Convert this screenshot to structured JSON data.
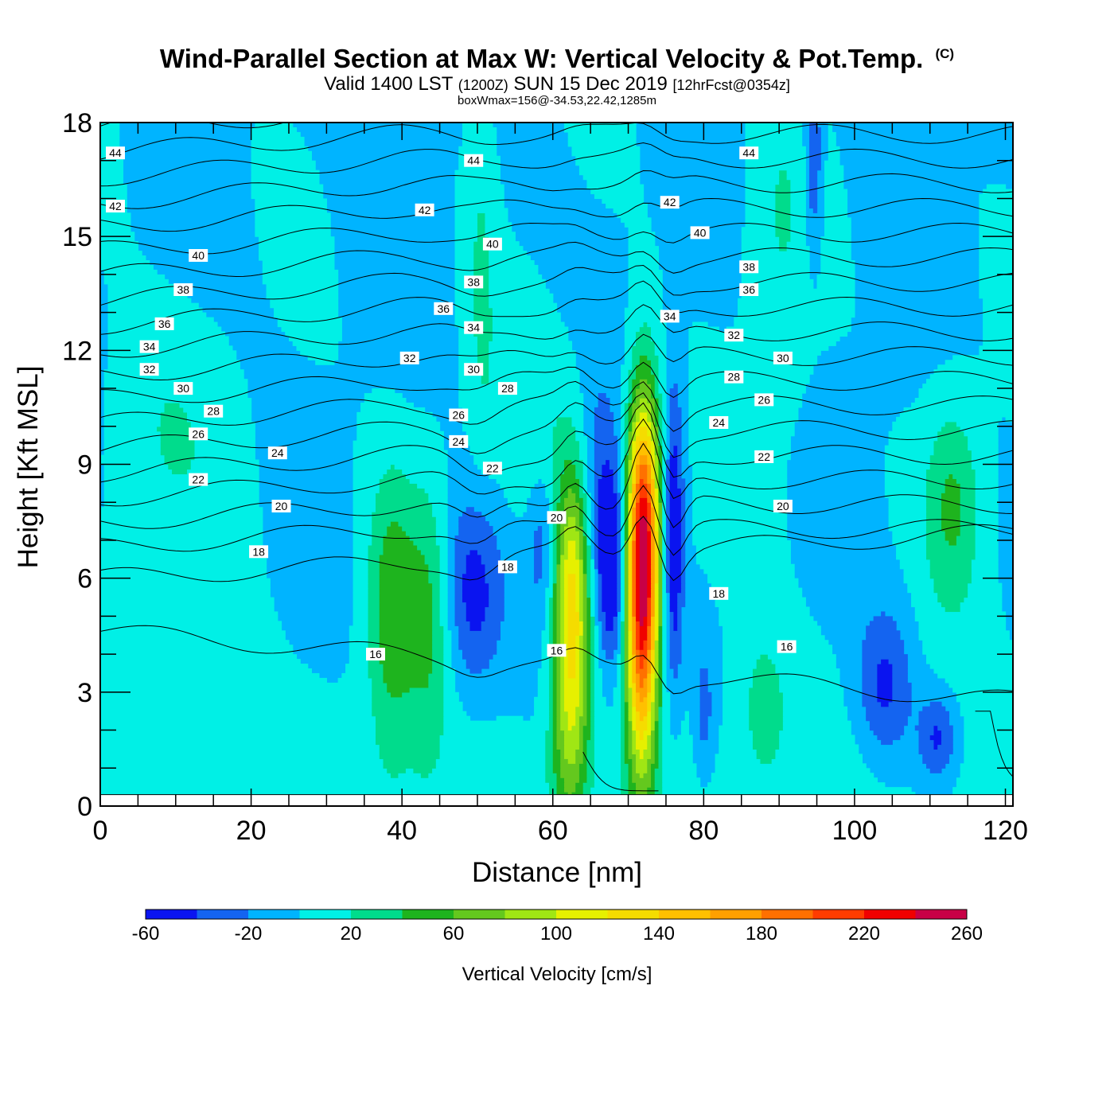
{
  "chart_data": {
    "type": "heatmap",
    "title": "Wind-Parallel Section at Max W: Vertical Velocity & Pot.Temp.",
    "title_mark": "(C)",
    "subtitle": {
      "valid": "Valid 1400 LST",
      "utc": "(1200Z)",
      "date": "SUN 15 Dec 2019",
      "forecast": "[12hrFcst@0354z]"
    },
    "annotation": "boxWmax=156@-34.53,22.42,1285m",
    "xlabel": "Distance [nm]",
    "ylabel": "Height [Kft MSL]",
    "xlim": [
      0,
      121
    ],
    "ylim": [
      0,
      18
    ],
    "x_ticks": [
      0,
      20,
      40,
      60,
      80,
      100,
      120
    ],
    "y_ticks": [
      0,
      3,
      6,
      9,
      12,
      15,
      18
    ],
    "terrain_height_kft": 0.3,
    "colorbar": {
      "label": "Vertical Velocity [cm/s]",
      "levels": [
        -60,
        -40,
        -20,
        0,
        20,
        40,
        60,
        80,
        100,
        120,
        140,
        160,
        180,
        200,
        220,
        240,
        260
      ],
      "tick_labels": [
        "-60",
        "-20",
        "20",
        "60",
        "100",
        "140",
        "180",
        "220",
        "260"
      ],
      "colors": [
        "#0a14f0",
        "#1464f0",
        "#00b4ff",
        "#00f0e6",
        "#00dc8c",
        "#1eb41e",
        "#64c81e",
        "#a0e614",
        "#e6f000",
        "#f5dc00",
        "#ffc000",
        "#ffa000",
        "#ff7000",
        "#ff3c00",
        "#f00000",
        "#c80046"
      ]
    },
    "vertical_velocity_features": [
      {
        "x": 62.5,
        "y": 5.5,
        "peak_cm_s": 130
      },
      {
        "x": 72.0,
        "y": 7.5,
        "peak_cm_s": 230
      },
      {
        "x": 68.0,
        "y": 6.3,
        "peak_cm_s": -60
      },
      {
        "x": 49.0,
        "y": 5.5,
        "peak_cm_s": -50
      },
      {
        "x": 76.0,
        "y": 7.0,
        "peak_cm_s": -60
      },
      {
        "x": 104.0,
        "y": 3.0,
        "peak_cm_s": -40
      },
      {
        "x": 38.5,
        "y": 5.0,
        "peak_cm_s": 55
      },
      {
        "x": 113.0,
        "y": 8.0,
        "peak_cm_s": 40
      },
      {
        "x": 88.0,
        "y": 2.8,
        "peak_cm_s": 30
      }
    ],
    "potential_temperature_labels": [
      {
        "x": 2,
        "y": 17.2,
        "text": "44"
      },
      {
        "x": 49.5,
        "y": 17.0,
        "text": "44"
      },
      {
        "x": 86,
        "y": 17.2,
        "text": "44"
      },
      {
        "x": 2,
        "y": 15.8,
        "text": "42"
      },
      {
        "x": 43,
        "y": 15.7,
        "text": "42"
      },
      {
        "x": 75.5,
        "y": 15.9,
        "text": "42"
      },
      {
        "x": 13,
        "y": 14.5,
        "text": "40"
      },
      {
        "x": 52,
        "y": 14.8,
        "text": "40"
      },
      {
        "x": 79.5,
        "y": 15.1,
        "text": "40"
      },
      {
        "x": 11,
        "y": 13.6,
        "text": "38"
      },
      {
        "x": 49.5,
        "y": 13.8,
        "text": "38"
      },
      {
        "x": 86,
        "y": 14.2,
        "text": "38"
      },
      {
        "x": 8.5,
        "y": 12.7,
        "text": "36"
      },
      {
        "x": 45.5,
        "y": 13.1,
        "text": "36"
      },
      {
        "x": 86,
        "y": 13.6,
        "text": "36"
      },
      {
        "x": 6.5,
        "y": 12.1,
        "text": "34"
      },
      {
        "x": 49.5,
        "y": 12.6,
        "text": "34"
      },
      {
        "x": 75.5,
        "y": 12.9,
        "text": "34"
      },
      {
        "x": 6.5,
        "y": 11.5,
        "text": "32"
      },
      {
        "x": 41,
        "y": 11.8,
        "text": "32"
      },
      {
        "x": 84,
        "y": 12.4,
        "text": "32"
      },
      {
        "x": 11,
        "y": 11.0,
        "text": "30"
      },
      {
        "x": 49.5,
        "y": 11.5,
        "text": "30"
      },
      {
        "x": 90.5,
        "y": 11.8,
        "text": "30"
      },
      {
        "x": 15,
        "y": 10.4,
        "text": "28"
      },
      {
        "x": 54,
        "y": 11.0,
        "text": "28"
      },
      {
        "x": 84,
        "y": 11.3,
        "text": "28"
      },
      {
        "x": 13,
        "y": 9.8,
        "text": "26"
      },
      {
        "x": 47.5,
        "y": 10.3,
        "text": "26"
      },
      {
        "x": 88,
        "y": 10.7,
        "text": "26"
      },
      {
        "x": 23.5,
        "y": 9.3,
        "text": "24"
      },
      {
        "x": 47.5,
        "y": 9.6,
        "text": "24"
      },
      {
        "x": 82,
        "y": 10.1,
        "text": "24"
      },
      {
        "x": 13,
        "y": 8.6,
        "text": "22"
      },
      {
        "x": 52,
        "y": 8.9,
        "text": "22"
      },
      {
        "x": 88,
        "y": 9.2,
        "text": "22"
      },
      {
        "x": 24,
        "y": 7.9,
        "text": "20"
      },
      {
        "x": 60.5,
        "y": 7.6,
        "text": "20"
      },
      {
        "x": 90.5,
        "y": 7.9,
        "text": "20"
      },
      {
        "x": 21,
        "y": 6.7,
        "text": "18"
      },
      {
        "x": 54,
        "y": 6.3,
        "text": "18"
      },
      {
        "x": 82,
        "y": 5.6,
        "text": "18"
      },
      {
        "x": 36.5,
        "y": 4.0,
        "text": "16"
      },
      {
        "x": 60.5,
        "y": 4.1,
        "text": "16"
      },
      {
        "x": 91,
        "y": 4.2,
        "text": "16"
      }
    ]
  }
}
